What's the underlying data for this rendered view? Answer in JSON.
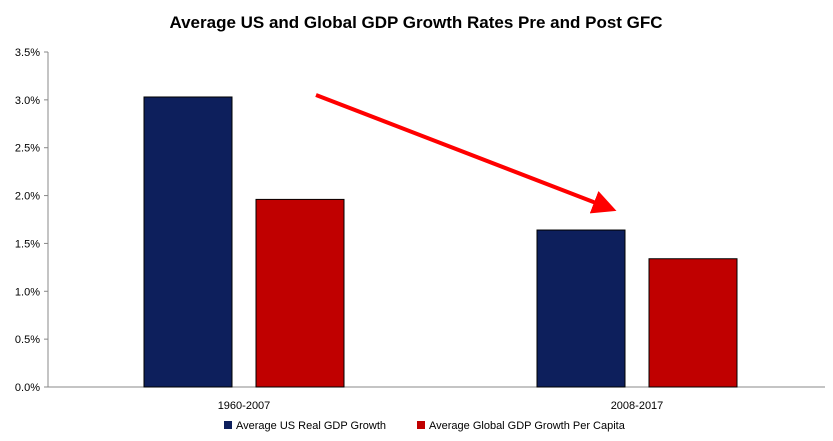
{
  "chart_data": {
    "type": "bar",
    "title": "Average US and Global GDP Growth Rates Pre and Post GFC",
    "xlabel": "",
    "ylabel": "",
    "categories": [
      "1960-2007",
      "2008-2017"
    ],
    "series": [
      {
        "name": "Average US Real GDP Growth",
        "color": "#0d1f5c",
        "values": [
          3.03,
          1.64
        ]
      },
      {
        "name": "Average Global GDP Growth Per Capita",
        "color": "#c00000",
        "values": [
          1.96,
          1.34
        ]
      }
    ],
    "ylim": [
      0,
      3.5
    ],
    "yticks": [
      "0.0%",
      "0.5%",
      "1.0%",
      "1.5%",
      "2.0%",
      "2.5%",
      "3.0%",
      "3.5%"
    ],
    "grid": false,
    "legend_position": "bottom",
    "annotation": {
      "type": "arrow",
      "color": "#ff0000",
      "from": [
        "1960-2007",
        3.03
      ],
      "to": [
        "2008-2017",
        1.87
      ]
    }
  }
}
